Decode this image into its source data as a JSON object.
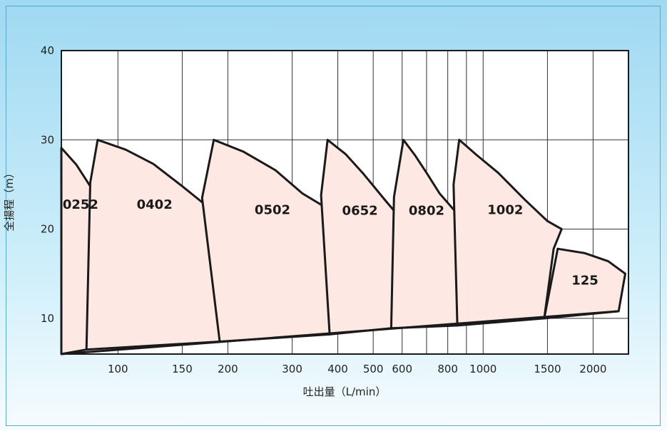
{
  "chart_data": {
    "type": "area",
    "title": "",
    "xlabel": "吐出量（L/min）",
    "ylabel": "全揚程（m）",
    "x_scale": "log",
    "xlim": [
      70,
      2500
    ],
    "ylim": [
      6,
      40
    ],
    "x_ticks": [
      {
        "value": 100,
        "label": "100"
      },
      {
        "value": 150,
        "label": "150"
      },
      {
        "value": 200,
        "label": "200"
      },
      {
        "value": 300,
        "label": "300"
      },
      {
        "value": 400,
        "label": "400"
      },
      {
        "value": 500,
        "label": "500"
      },
      {
        "value": 600,
        "label": "600"
      },
      {
        "value": 800,
        "label": "800"
      },
      {
        "value": 1000,
        "label": "1000"
      },
      {
        "value": 1500,
        "label": "1500"
      },
      {
        "value": 2000,
        "label": "2000"
      }
    ],
    "x_gridlines": [
      100,
      150,
      200,
      300,
      400,
      500,
      600,
      700,
      800,
      900,
      1000,
      1500,
      2000
    ],
    "y_ticks": [
      10,
      20,
      30,
      40
    ],
    "grid": true,
    "fill_color": "#fde8e4",
    "stroke_color": "#1a1a1a",
    "series": [
      {
        "name": "0252",
        "label_at": [
          79,
          22.7
        ],
        "boundary": [
          [
            70,
            29.1
          ],
          [
            77,
            27.2
          ],
          [
            84,
            24.8
          ],
          [
            90,
            23.0
          ],
          [
            82,
            6.5
          ],
          [
            70,
            6.0
          ]
        ]
      },
      {
        "name": "0402",
        "label_at": [
          126,
          22.7
        ],
        "boundary": [
          [
            84,
            25.2
          ],
          [
            88,
            30.0
          ],
          [
            105,
            28.9
          ],
          [
            125,
            27.3
          ],
          [
            150,
            24.8
          ],
          [
            175,
            22.6
          ],
          [
            200,
            21.0
          ],
          [
            190,
            7.4
          ],
          [
            82,
            6.5
          ]
        ]
      },
      {
        "name": "0502",
        "label_at": [
          265,
          22.1
        ],
        "boundary": [
          [
            170,
            23.5
          ],
          [
            183,
            30.0
          ],
          [
            220,
            28.7
          ],
          [
            270,
            26.6
          ],
          [
            320,
            24.0
          ],
          [
            375,
            22.3
          ],
          [
            400,
            21.0
          ],
          [
            380,
            8.2
          ],
          [
            190,
            7.4
          ]
        ]
      },
      {
        "name": "0652",
        "label_at": [
          460,
          22.0
        ],
        "boundary": [
          [
            360,
            23.8
          ],
          [
            375,
            30.0
          ],
          [
            420,
            28.4
          ],
          [
            470,
            26.2
          ],
          [
            540,
            23.2
          ],
          [
            600,
            21.0
          ],
          [
            560,
            8.9
          ],
          [
            380,
            8.2
          ]
        ]
      },
      {
        "name": "0802",
        "label_at": [
          700,
          22.0
        ],
        "boundary": [
          [
            570,
            23.6
          ],
          [
            605,
            30.0
          ],
          [
            650,
            28.3
          ],
          [
            700,
            26.3
          ],
          [
            760,
            24.0
          ],
          [
            830,
            22.2
          ],
          [
            880,
            21.0
          ],
          [
            850,
            9.2
          ],
          [
            560,
            8.9
          ]
        ]
      },
      {
        "name": "1002",
        "label_at": [
          1150,
          22.1
        ],
        "boundary": [
          [
            830,
            25.0
          ],
          [
            860,
            30.0
          ],
          [
            960,
            28.3
          ],
          [
            1100,
            26.3
          ],
          [
            1300,
            23.3
          ],
          [
            1500,
            20.9
          ],
          [
            1640,
            20.0
          ],
          [
            1560,
            17.8
          ],
          [
            1470,
            10.0
          ],
          [
            850,
            9.2
          ]
        ]
      },
      {
        "name": "125",
        "label_at": [
          1900,
          14.2
        ],
        "boundary": [
          [
            1600,
            17.8
          ],
          [
            1900,
            17.3
          ],
          [
            2200,
            16.4
          ],
          [
            2450,
            15.0
          ],
          [
            2350,
            10.8
          ],
          [
            1470,
            10.0
          ]
        ]
      }
    ],
    "baseline": [
      [
        70,
        6.0
      ],
      [
        2350,
        10.8
      ]
    ]
  }
}
